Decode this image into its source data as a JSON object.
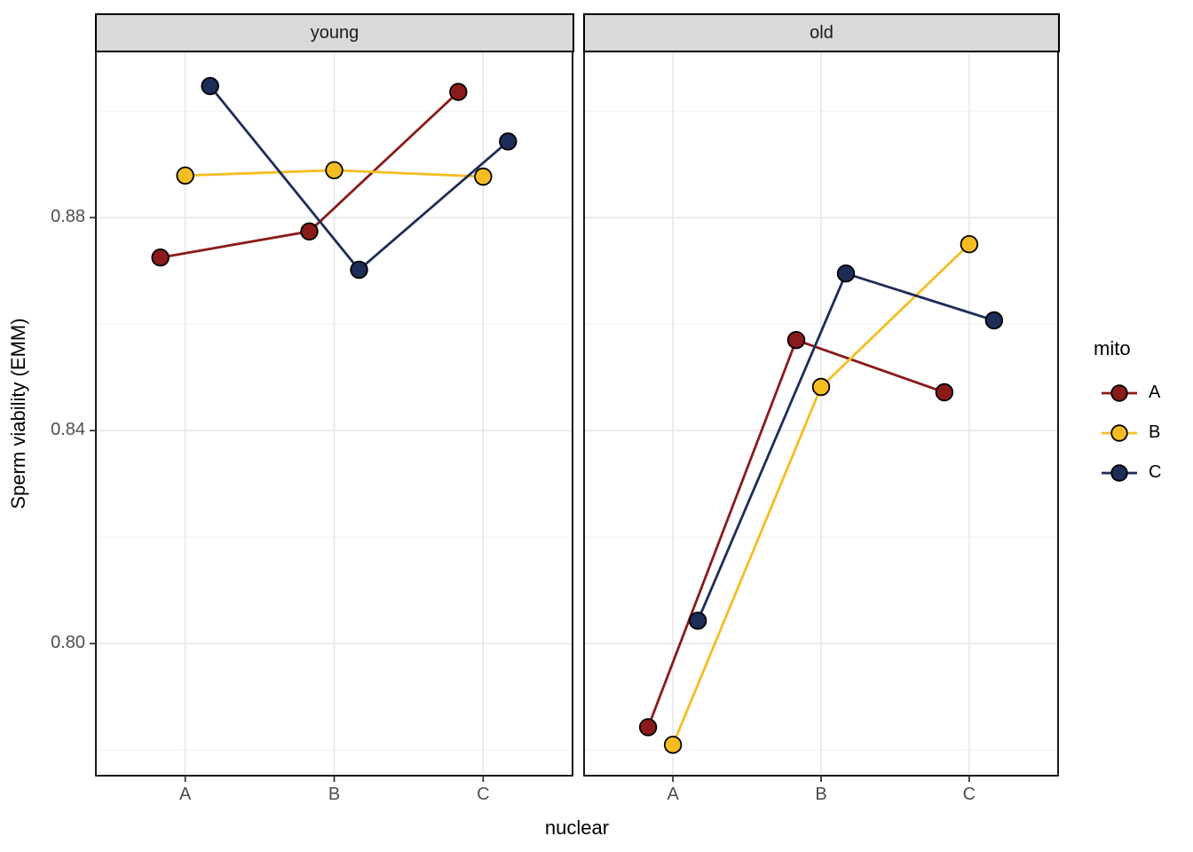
{
  "chart_data": {
    "type": "line",
    "title": "",
    "xlabel": "nuclear",
    "ylabel": "Sperm viability (EMM)",
    "categories": [
      "A",
      "B",
      "C"
    ],
    "y_ticks": [
      0.88,
      0.84,
      0.8
    ],
    "y_minor_ticks": [
      0.9,
      0.86,
      0.82,
      0.78
    ],
    "ylim": [
      0.7752,
      0.9112
    ],
    "grid": true,
    "legend": {
      "title": "mito",
      "position": "right",
      "entries": [
        {
          "label": "A",
          "color": "#8B1A1A"
        },
        {
          "label": "B",
          "color": "#F5BD22"
        },
        {
          "label": "C",
          "color": "#1E2C58"
        }
      ]
    },
    "facets": [
      {
        "label": "young",
        "series": [
          {
            "name": "A",
            "color": "#8B1A1A",
            "values": [
              0.8725,
              0.8774,
              0.9036
            ]
          },
          {
            "name": "B",
            "color": "#F5BD22",
            "values": [
              0.8879,
              0.8889,
              0.8877
            ]
          },
          {
            "name": "C",
            "color": "#1E2C58",
            "values": [
              0.9047,
              0.8702,
              0.8943
            ]
          }
        ]
      },
      {
        "label": "old",
        "series": [
          {
            "name": "A",
            "color": "#8B1A1A",
            "values": [
              0.7843,
              0.857,
              0.8472
            ]
          },
          {
            "name": "B",
            "color": "#F5BD22",
            "values": [
              0.781,
              0.8482,
              0.875
            ]
          },
          {
            "name": "C",
            "color": "#1E2C58",
            "values": [
              0.8043,
              0.8695,
              0.8607
            ]
          }
        ]
      }
    ],
    "style": {
      "strip_bg": "#D9D9D9",
      "grid_major": "#E5E5E5",
      "grid_minor": "#F0F0F0",
      "panel_border": "#000000",
      "point_stroke": "#000000",
      "tick_color": "#333333",
      "tick_label_color": "#4D4D4D"
    }
  }
}
